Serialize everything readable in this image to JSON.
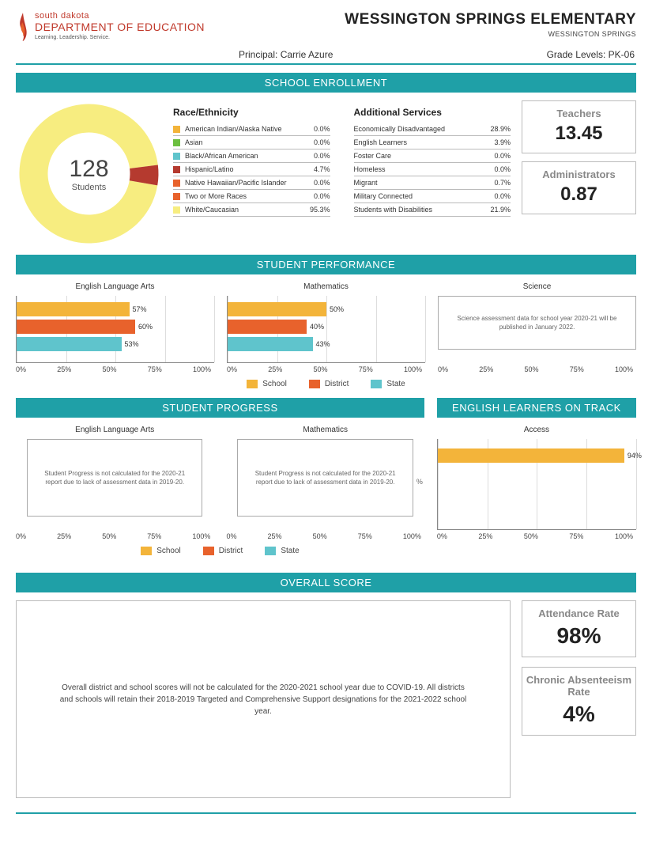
{
  "header": {
    "logo_line1": "south dakota",
    "logo_line2": "DEPARTMENT OF EDUCATION",
    "logo_tag": "Learning. Leadership. Service.",
    "school_name": "WESSINGTON SPRINGS ELEMENTARY",
    "district": "WESSINGTON SPRINGS",
    "principal_label": "Principal: Carrie  Azure",
    "grade_levels": "Grade Levels: PK-06"
  },
  "colors": {
    "teal": "#1fa0a7",
    "school": "#f3b43a",
    "district": "#e8622c",
    "state": "#5fc4cc",
    "donut_main": "#f7ed80",
    "donut_slice": "#b53a2f"
  },
  "enrollment": {
    "section": "SCHOOL ENROLLMENT",
    "count": "128",
    "count_label": "Students",
    "donut": {
      "main_pct": 95.3,
      "slice_pct": 4.7
    },
    "race_title": "Race/Ethnicity",
    "race": [
      {
        "color": "#f3b43a",
        "label": "American Indian/Alaska Native",
        "val": "0.0%"
      },
      {
        "color": "#6cbf3f",
        "label": "Asian",
        "val": "0.0%"
      },
      {
        "color": "#5fc4cc",
        "label": "Black/African American",
        "val": "0.0%"
      },
      {
        "color": "#b53a2f",
        "label": "Hispanic/Latino",
        "val": "4.7%"
      },
      {
        "color": "#e8622c",
        "label": "Native Hawaiian/Pacific Islander",
        "val": "0.0%"
      },
      {
        "color": "#e8622c",
        "label": "Two or More Races",
        "val": "0.0%"
      },
      {
        "color": "#f7ed80",
        "label": "White/Caucasian",
        "val": "95.3%"
      }
    ],
    "services_title": "Additional Services",
    "services": [
      {
        "label": "Economically Disadvantaged",
        "val": "28.9%"
      },
      {
        "label": "English Learners",
        "val": "3.9%"
      },
      {
        "label": "Foster Care",
        "val": "0.0%"
      },
      {
        "label": "Homeless",
        "val": "0.0%"
      },
      {
        "label": "Migrant",
        "val": "0.7%"
      },
      {
        "label": "Military Connected",
        "val": "0.0%"
      },
      {
        "label": "Students with Disabilities",
        "val": "21.9%"
      }
    ],
    "teachers_label": "Teachers",
    "teachers_val": "13.45",
    "admin_label": "Administrators",
    "admin_val": "0.87"
  },
  "performance": {
    "section": "STUDENT PERFORMANCE",
    "legend": {
      "school": "School",
      "district": "District",
      "state": "State"
    },
    "axis": [
      "0%",
      "25%",
      "50%",
      "75%",
      "100%"
    ],
    "charts": [
      {
        "title": "English Language Arts",
        "bars": [
          {
            "c": "#f3b43a",
            "v": 57,
            "l": "57%"
          },
          {
            "c": "#e8622c",
            "v": 60,
            "l": "60%"
          },
          {
            "c": "#5fc4cc",
            "v": 53,
            "l": "53%"
          }
        ]
      },
      {
        "title": "Mathematics",
        "bars": [
          {
            "c": "#f3b43a",
            "v": 50,
            "l": "50%"
          },
          {
            "c": "#e8622c",
            "v": 40,
            "l": "40%"
          },
          {
            "c": "#5fc4cc",
            "v": 43,
            "l": "43%"
          }
        ]
      },
      {
        "title": "Science",
        "note": "Science assessment data for school year 2020-21 will be published in January 2022."
      }
    ]
  },
  "progress": {
    "section": "STUDENT PROGRESS",
    "charts": [
      {
        "title": "English Language Arts",
        "note": "Student Progress is not calculated for the 2020-21 report due to lack of assessment data in 2019-20."
      },
      {
        "title": "Mathematics",
        "note": "Student Progress is not calculated for the 2020-21 report due to lack of assessment data in 2019-20.",
        "trailing": "%"
      }
    ]
  },
  "elot": {
    "section": "ENGLISH LEARNERS ON TRACK",
    "chart": {
      "title": "Access",
      "bars": [
        {
          "c": "#f3b43a",
          "v": 94,
          "l": "94%"
        }
      ]
    }
  },
  "overall": {
    "section": "OVERALL SCORE",
    "note": "Overall district and school scores will not be calculated for the 2020-2021 school year due to COVID-19. All districts and schools will retain their 2018-2019 Targeted and Comprehensive Support designations for the 2021-2022 school year.",
    "attendance_label": "Attendance Rate",
    "attendance_val": "98%",
    "chronic_label": "Chronic Absenteeism Rate",
    "chronic_val": "4%"
  }
}
